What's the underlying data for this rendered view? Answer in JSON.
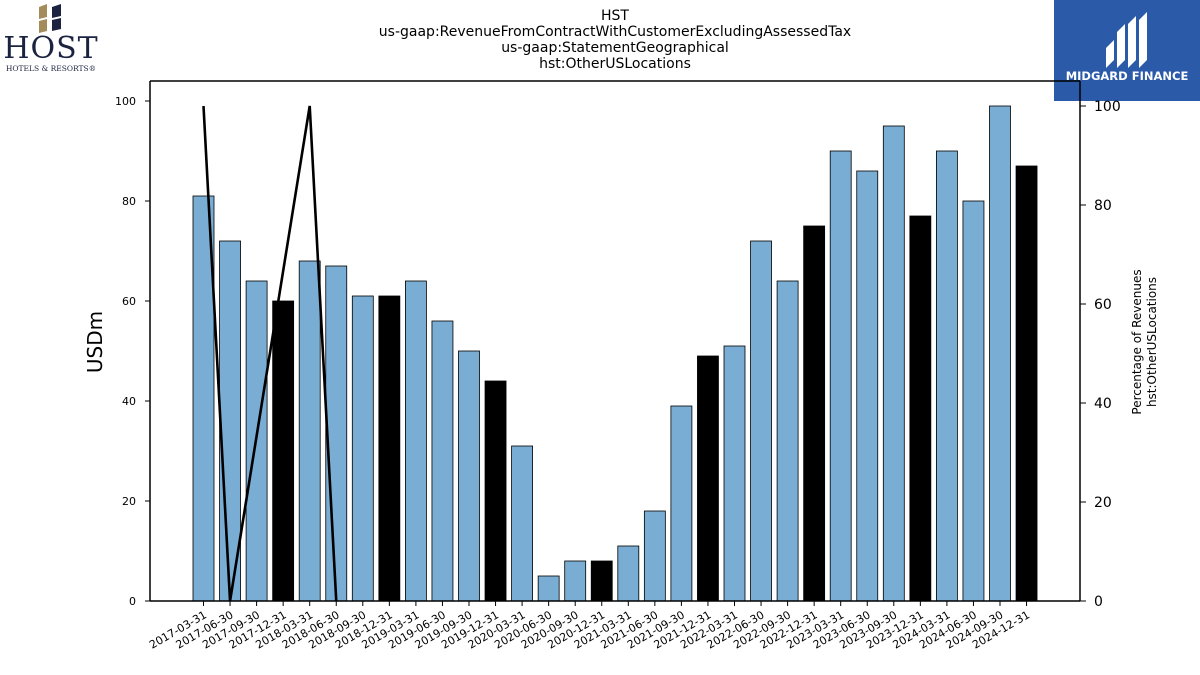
{
  "header": {
    "title_lines": [
      "HST",
      "us-gaap:RevenueFromContractWithCustomerExcludingAssessedTax",
      "us-gaap:StatementGeographical",
      "hst:OtherUSLocations"
    ]
  },
  "logos": {
    "left": {
      "name": "HOST",
      "sub": "HOTELS & RESORTS®",
      "colors": {
        "gold": "#a48b5a",
        "navy": "#1b2340"
      }
    },
    "right": {
      "name": "MIDGARD FINANCE",
      "background": "#2b5aa8"
    }
  },
  "chart_data": {
    "type": "bar",
    "categories": [
      "2017-03-31",
      "2017-06-30",
      "2017-09-30",
      "2017-12-31",
      "2018-03-31",
      "2018-06-30",
      "2018-09-30",
      "2018-12-31",
      "2019-03-31",
      "2019-06-30",
      "2019-09-30",
      "2019-12-31",
      "2020-03-31",
      "2020-06-30",
      "2020-09-30",
      "2020-12-31",
      "2021-03-31",
      "2021-06-30",
      "2021-09-30",
      "2021-12-31",
      "2022-03-31",
      "2022-06-30",
      "2022-09-30",
      "2022-12-31",
      "2023-03-31",
      "2023-06-30",
      "2023-09-30",
      "2023-12-31",
      "2024-03-31",
      "2024-06-30",
      "2024-09-30",
      "2024-12-31"
    ],
    "values": [
      81,
      72,
      64,
      60,
      68,
      67,
      61,
      61,
      64,
      56,
      50,
      44,
      31,
      5,
      8,
      8,
      11,
      18,
      39,
      49,
      51,
      72,
      64,
      75,
      90,
      86,
      95,
      77,
      90,
      80,
      99,
      87
    ],
    "highlight": [
      false,
      false,
      false,
      true,
      false,
      false,
      false,
      true,
      false,
      false,
      false,
      true,
      false,
      false,
      false,
      true,
      false,
      false,
      false,
      true,
      false,
      false,
      false,
      true,
      false,
      false,
      false,
      true,
      false,
      false,
      false,
      true
    ],
    "colors": {
      "bar": "#7aadd3",
      "highlight": "#000000",
      "line": "#000000"
    },
    "ylabel": "USDm",
    "ylim": [
      0,
      100
    ],
    "yticks": [
      0,
      20,
      40,
      60,
      80,
      100
    ],
    "y2label_lines": [
      "Percentage of Revenues",
      "hst:OtherUSLocations"
    ],
    "y2lim": [
      0,
      100
    ],
    "y2ticks": [
      0,
      20,
      40,
      60,
      80,
      100
    ],
    "line_series": {
      "x_index": [
        0,
        1,
        4,
        5
      ],
      "values": [
        100,
        0,
        100,
        0
      ]
    },
    "grid": false
  }
}
